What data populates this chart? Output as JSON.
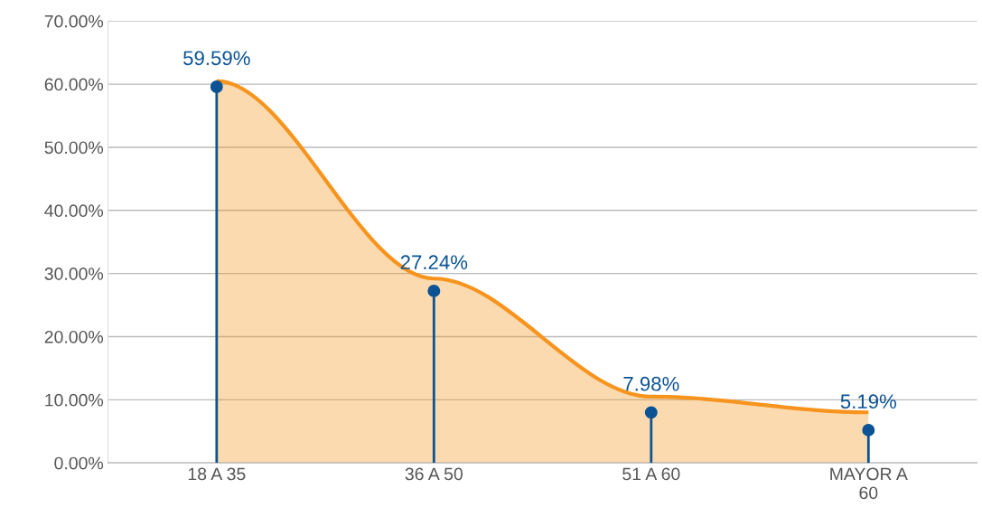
{
  "chart_data": {
    "type": "lollipop",
    "categories": [
      "18 A 35",
      "36 A 50",
      "51 A 60",
      "MAYOR A 60"
    ],
    "series": [
      {
        "type": "area",
        "color": "#f7941d",
        "values": [
          60.5,
          29.2,
          10.5,
          8.0
        ]
      },
      {
        "color": "#0b5394",
        "marker": "circle",
        "values": [
          59.59,
          27.24,
          7.98,
          5.19
        ],
        "value_labels": [
          "59.59%",
          "27.24%",
          "7.98%",
          "5.19%"
        ]
      }
    ],
    "ylim": [
      0,
      70
    ],
    "yticks": [
      {
        "value": 0,
        "label": "0.00%"
      },
      {
        "value": 10,
        "label": "10.00%"
      },
      {
        "value": 20,
        "label": "20.00%"
      },
      {
        "value": 30,
        "label": "30.00%"
      },
      {
        "value": 40,
        "label": "40.00%"
      },
      {
        "value": 50,
        "label": "50.00%"
      },
      {
        "value": 60,
        "label": "60.00%"
      },
      {
        "value": 70,
        "label": "70.00%"
      }
    ],
    "grid": "y"
  }
}
